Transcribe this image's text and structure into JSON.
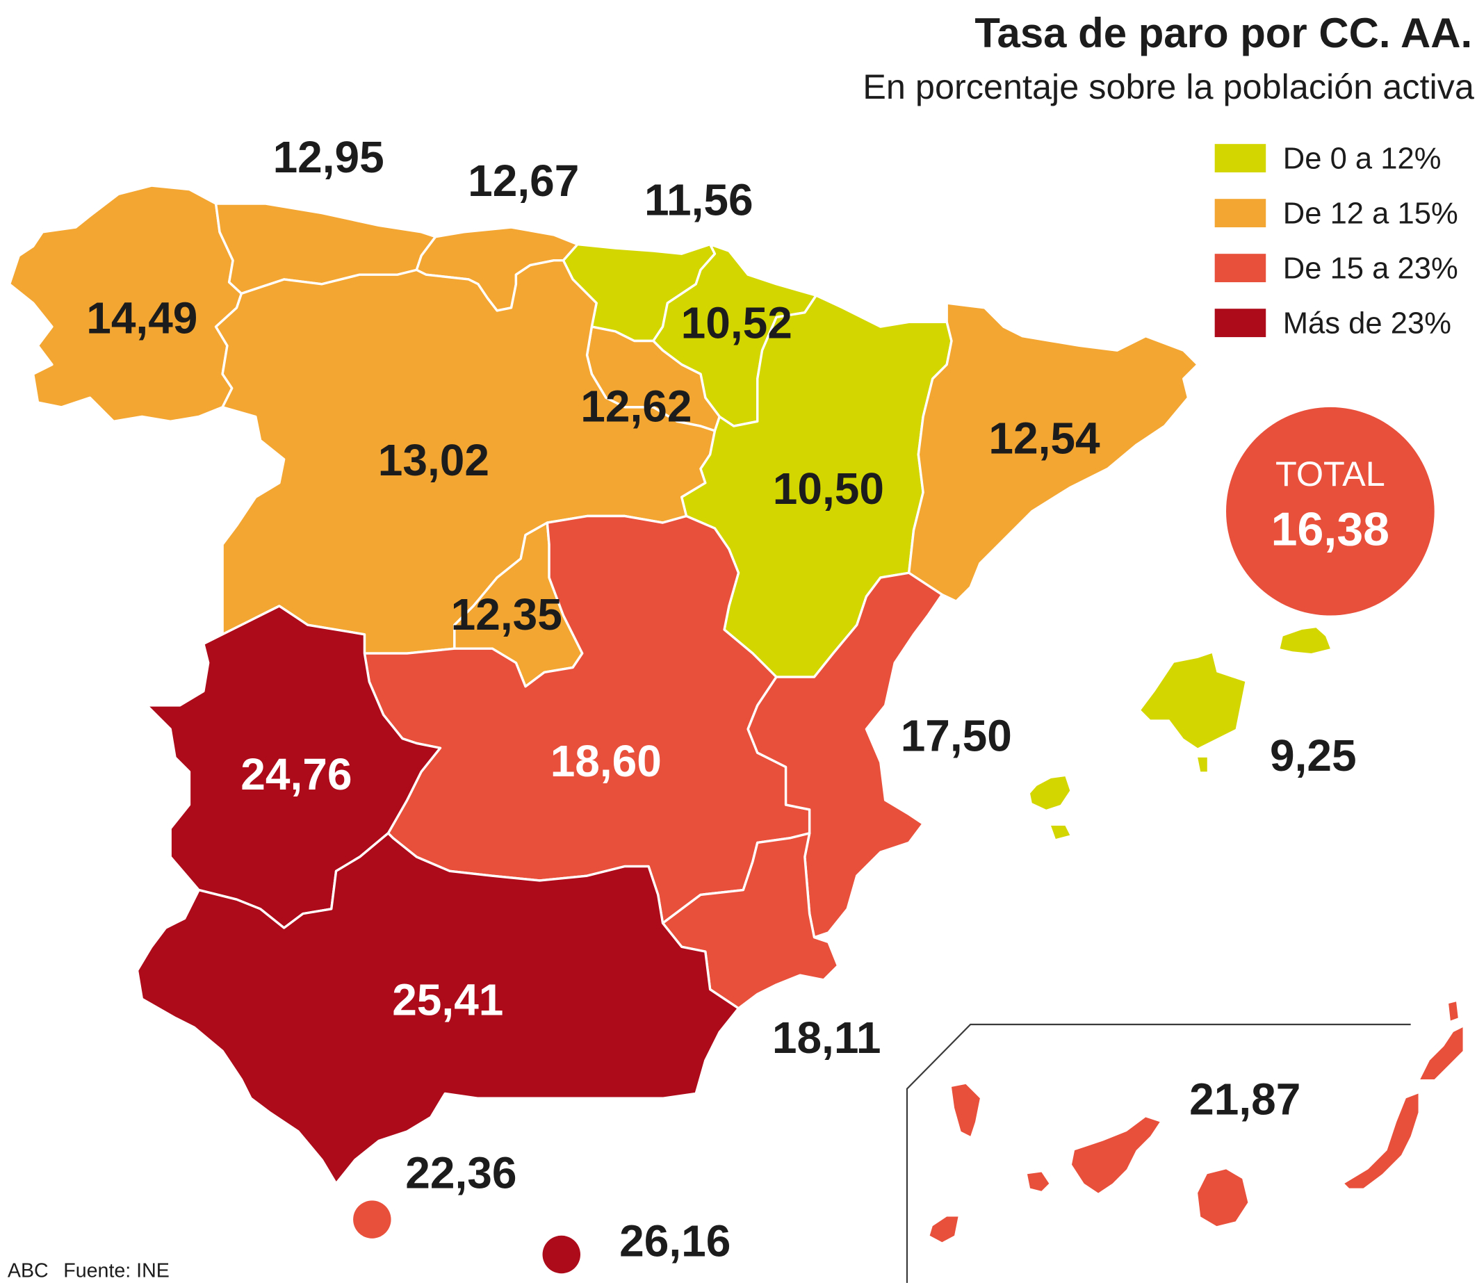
{
  "title": "Tasa de paro por CC. AA.",
  "subtitle": "En porcentaje sobre la población activa",
  "legend": [
    {
      "label": "De 0 a 12%",
      "color": "#d4d600"
    },
    {
      "label": "De 12 a 15%",
      "color": "#f3a632"
    },
    {
      "label": "De 15 a 23%",
      "color": "#e8503c"
    },
    {
      "label": "Más de 23%",
      "color": "#ad0a1a"
    }
  ],
  "total": {
    "label": "TOTAL",
    "value": "16,38",
    "color": "#e8503c"
  },
  "regions": {
    "galicia": {
      "value": "14,49",
      "color": "#f3a632"
    },
    "asturias": {
      "value": "12,95",
      "color": "#f3a632"
    },
    "cantabria": {
      "value": "12,67",
      "color": "#f3a632"
    },
    "pais_vasco": {
      "value": "11,56",
      "color": "#d4d600"
    },
    "navarra": {
      "value": "10,52",
      "color": "#d4d600"
    },
    "la_rioja": {
      "value": "12,62",
      "color": "#f3a632"
    },
    "castilla_y_leon": {
      "value": "13,02",
      "color": "#f3a632"
    },
    "aragon": {
      "value": "10,50",
      "color": "#d4d600"
    },
    "cataluna": {
      "value": "12,54",
      "color": "#f3a632"
    },
    "madrid": {
      "value": "12,35",
      "color": "#f3a632"
    },
    "extremadura": {
      "value": "24,76",
      "color": "#ad0a1a"
    },
    "castilla_la_mancha": {
      "value": "18,60",
      "color": "#e8503c"
    },
    "valenciana": {
      "value": "17,50",
      "color": "#e8503c"
    },
    "murcia": {
      "value": "18,11",
      "color": "#e8503c"
    },
    "andalucia": {
      "value": "25,41",
      "color": "#ad0a1a"
    },
    "baleares": {
      "value": "9,25",
      "color": "#d4d600"
    },
    "canarias": {
      "value": "21,87",
      "color": "#e8503c"
    },
    "ceuta": {
      "value": "22,36",
      "color": "#e8503c"
    },
    "melilla": {
      "value": "26,16",
      "color": "#ad0a1a"
    }
  },
  "credit": "ABC",
  "source": "Fuente: INE"
}
